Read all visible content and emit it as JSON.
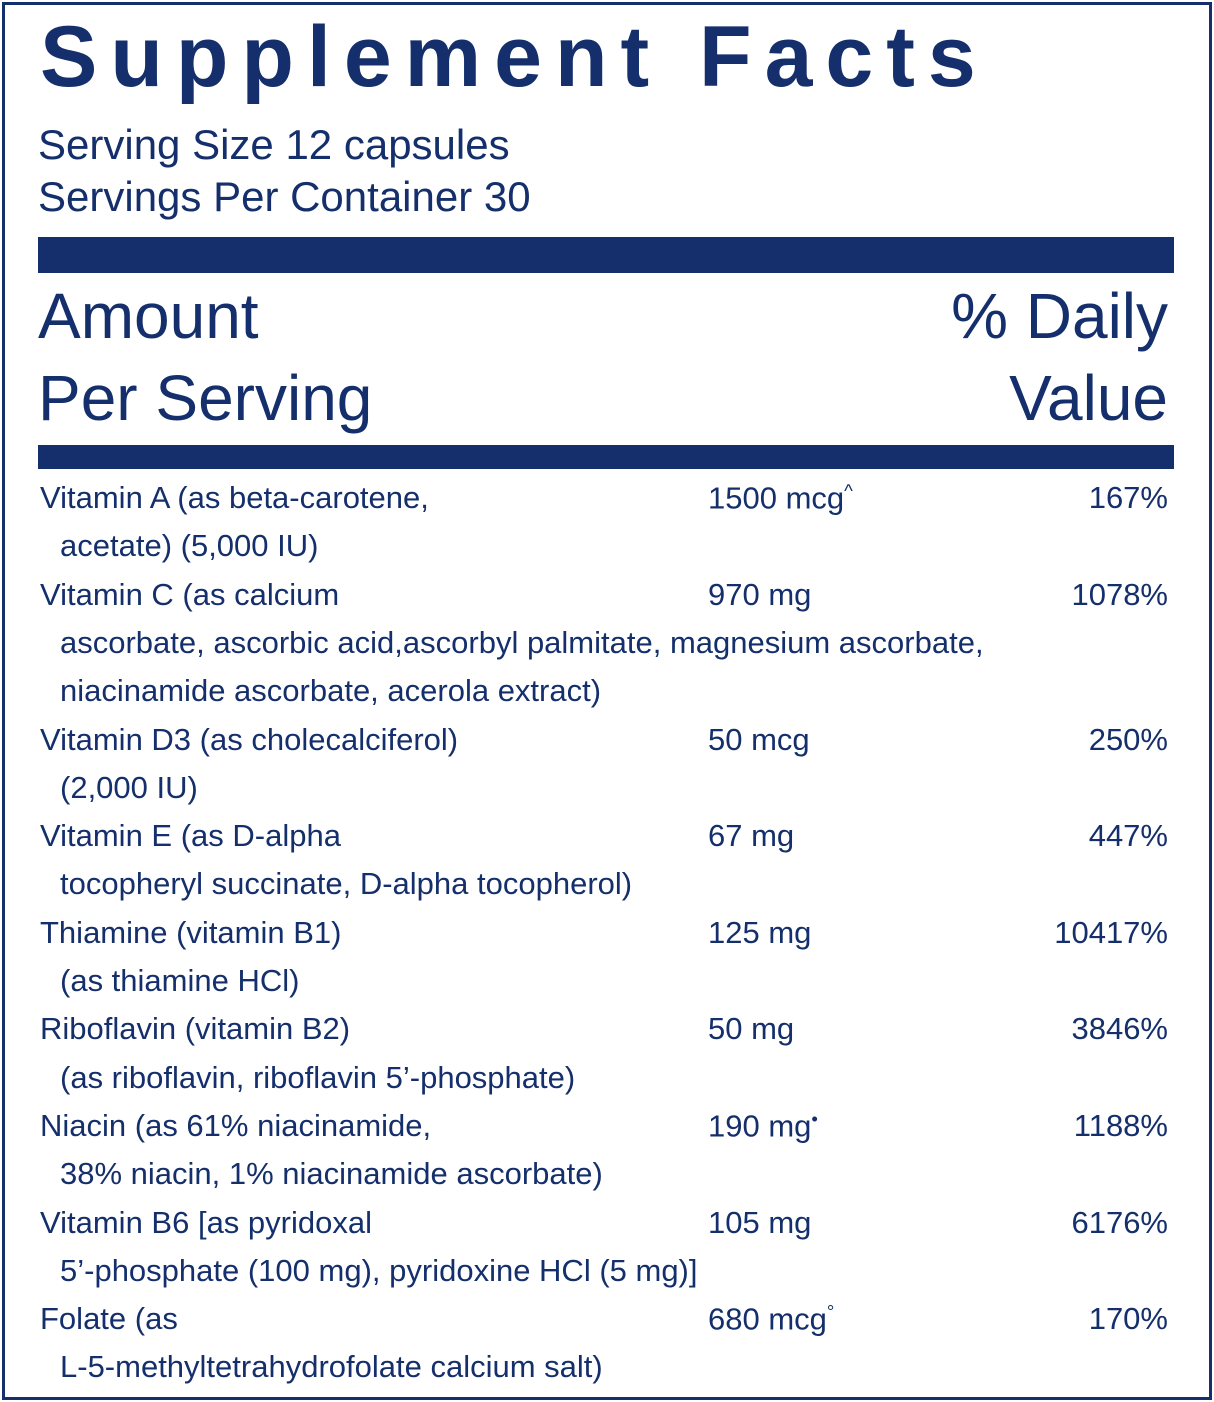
{
  "title": "Supplement Facts",
  "serving_size": "Serving Size 12 capsules",
  "servings_per_container": "Servings Per Container 30",
  "header": {
    "amount": [
      "Amount",
      "Per Serving"
    ],
    "daily_value": [
      "% Daily",
      "Value"
    ]
  },
  "rows": [
    {
      "name": [
        "Vitamin A (as beta-carotene,",
        "acetate) (5,000 IU)"
      ],
      "amount": "1500 mcg",
      "symbol": "^",
      "dv": "167%"
    },
    {
      "name": [
        "Vitamin C (as calcium",
        "ascorbate, ascorbic acid,ascorbyl palmitate, magnesium ascorbate,",
        "niacinamide ascorbate, acerola extract)"
      ],
      "amount": "970 mg",
      "dv": "1078%"
    },
    {
      "name": [
        "Vitamin D3 (as cholecalciferol)",
        "(2,000 IU)"
      ],
      "amount": "50 mcg",
      "dv": "250%"
    },
    {
      "name": [
        "Vitamin E (as D-alpha",
        "tocopheryl succinate, D-alpha tocopherol)"
      ],
      "amount": "67 mg",
      "dv": "447%"
    },
    {
      "name": [
        "Thiamine (vitamin B1)",
        "(as thiamine HCl)"
      ],
      "amount": "125 mg",
      "dv": "10417%"
    },
    {
      "name": [
        "Riboflavin (vitamin B2)",
        "(as riboflavin, riboflavin 5’-phosphate)"
      ],
      "amount": "50 mg",
      "dv": "3846%"
    },
    {
      "name": [
        "Niacin (as 61% niacinamide,",
        "38% niacin, 1% niacinamide ascorbate)"
      ],
      "amount": "190 mg",
      "symbol": "•",
      "dv": "1188%"
    },
    {
      "name": [
        "Vitamin B6 [as pyridoxal",
        "5’-phosphate (100 mg), pyridoxine HCl (5 mg)]"
      ],
      "amount": "105 mg",
      "dv": "6176%"
    },
    {
      "name": [
        "Folate (as",
        "L-5-methyltetrahydrofolate calcium salt)"
      ],
      "amount": "680 mcg",
      "symbol": "°",
      "dv": "170%"
    }
  ]
}
